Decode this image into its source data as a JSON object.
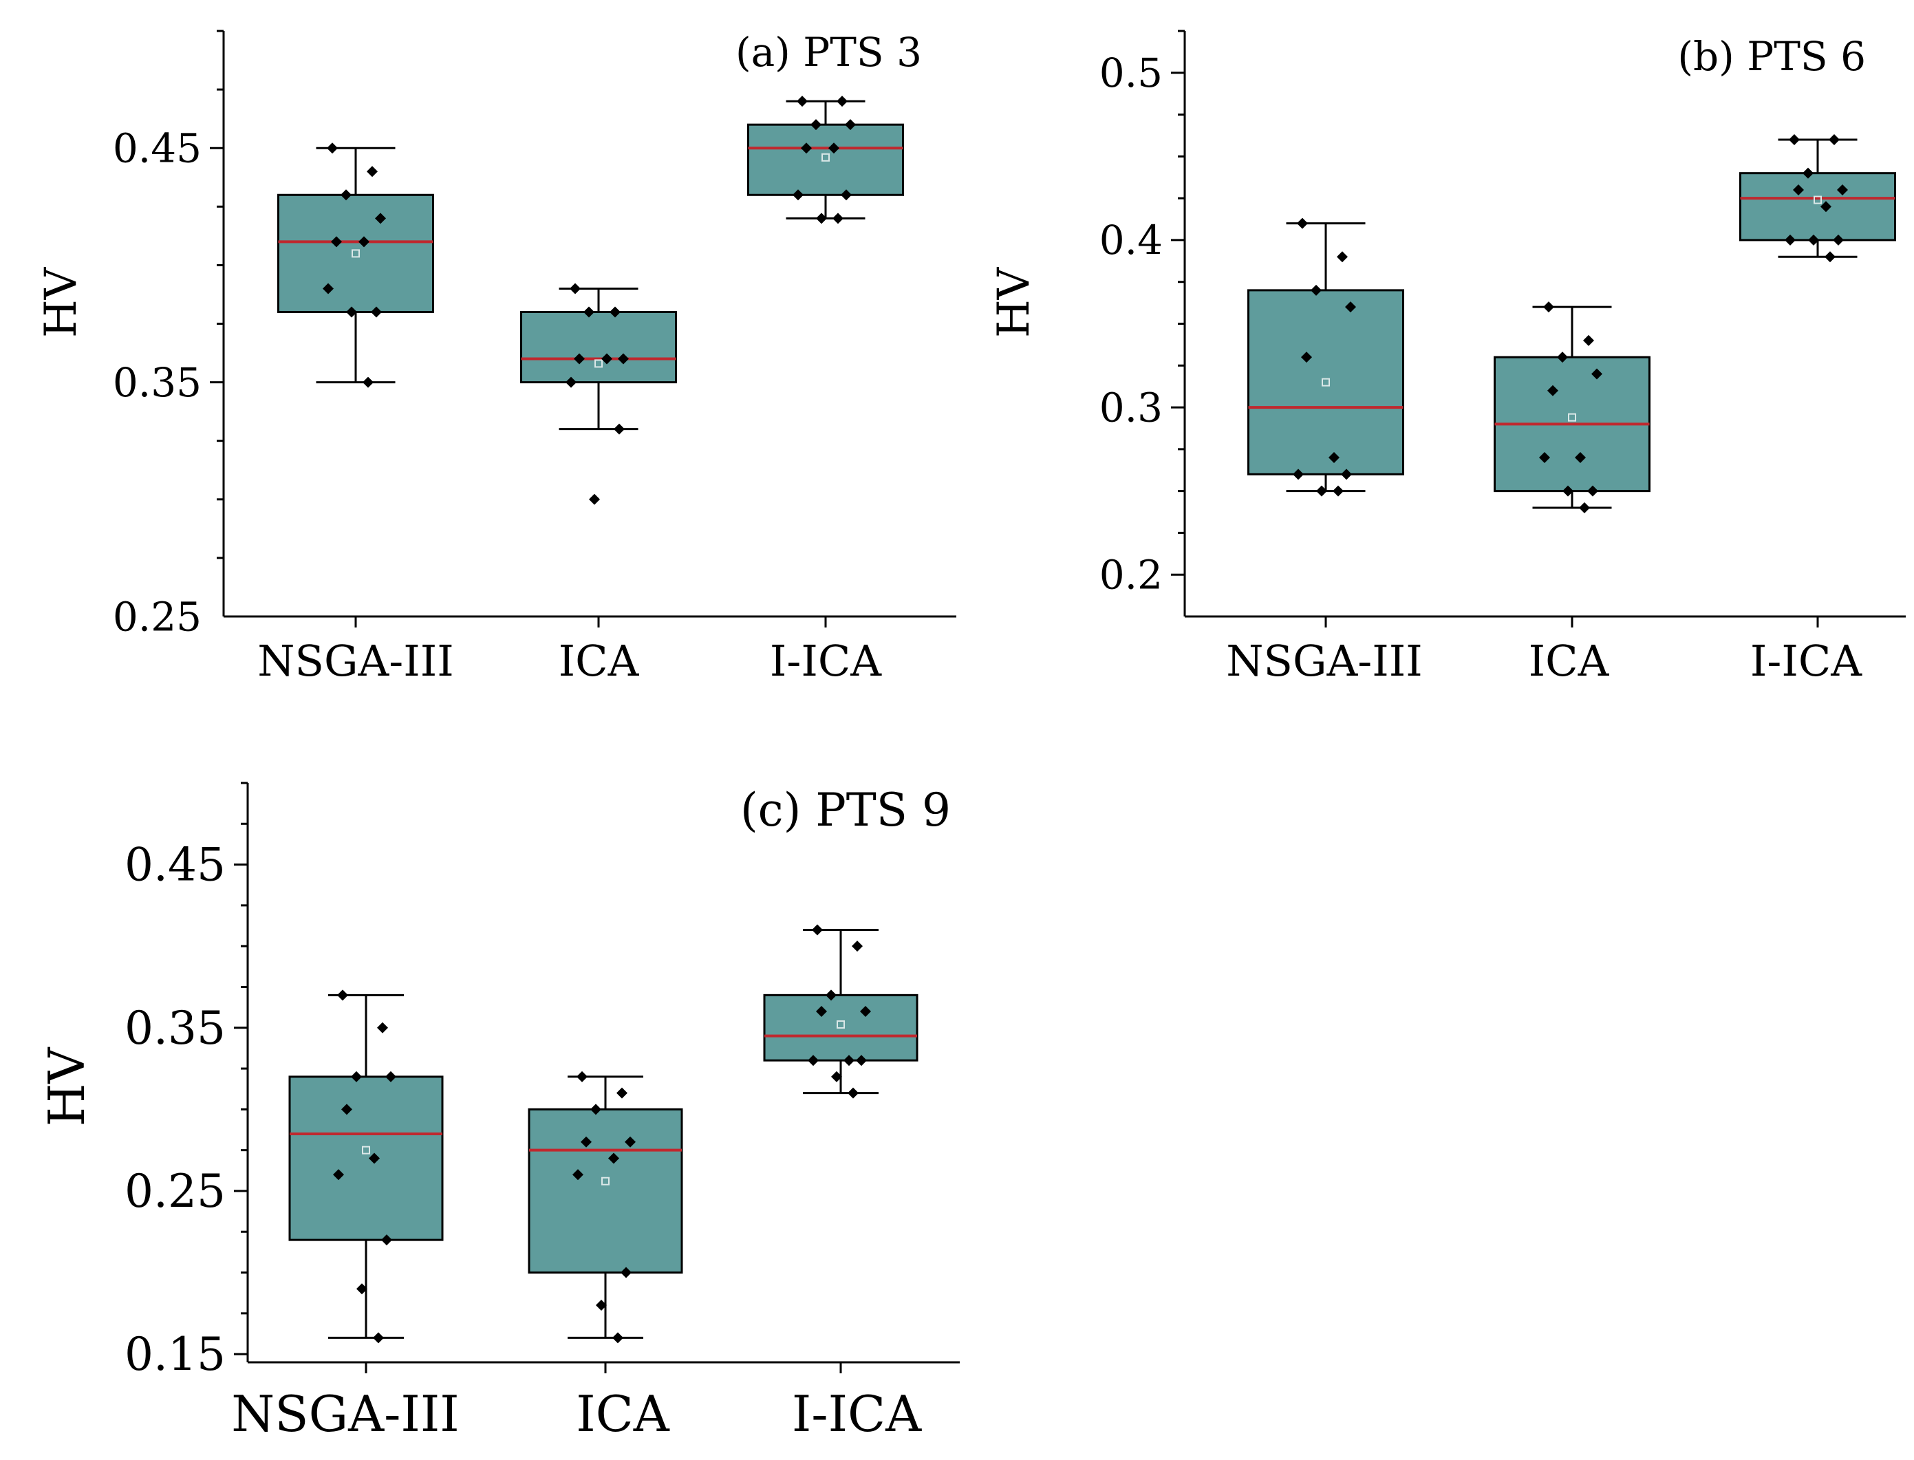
{
  "colors": {
    "box_fill": "#5f9c9c",
    "median": "#c0282e",
    "point": "#000000",
    "mean_marker": "#dbe8e8"
  },
  "chart_data": [
    {
      "type": "box",
      "title": "(a) PTS 3",
      "xlabel": "",
      "ylabel": "HV",
      "ylim": [
        0.25,
        0.5
      ],
      "yticks": [
        0.25,
        0.35,
        0.45
      ],
      "ytick_labels": [
        "0.25",
        "0.35",
        "0.45"
      ],
      "categories": [
        "NSGA-III",
        "ICA",
        "I-ICA"
      ],
      "series": [
        {
          "name": "NSGA-III",
          "q1": 0.38,
          "median": 0.41,
          "q3": 0.43,
          "whisker_low": 0.35,
          "whisker_high": 0.45,
          "mean": 0.405,
          "points": [
            0.45,
            0.44,
            0.43,
            0.42,
            0.41,
            0.41,
            0.39,
            0.38,
            0.38,
            0.35
          ]
        },
        {
          "name": "ICA",
          "q1": 0.35,
          "median": 0.36,
          "q3": 0.38,
          "whisker_low": 0.33,
          "whisker_high": 0.39,
          "mean": 0.358,
          "points": [
            0.39,
            0.38,
            0.38,
            0.36,
            0.36,
            0.36,
            0.35,
            0.33,
            0.3
          ]
        },
        {
          "name": "I-ICA",
          "q1": 0.43,
          "median": 0.45,
          "q3": 0.46,
          "whisker_low": 0.42,
          "whisker_high": 0.47,
          "mean": 0.446,
          "points": [
            0.47,
            0.47,
            0.46,
            0.46,
            0.45,
            0.45,
            0.43,
            0.43,
            0.42,
            0.42
          ]
        }
      ]
    },
    {
      "type": "box",
      "title": "(b) PTS 6",
      "xlabel": "",
      "ylabel": "HV",
      "ylim": [
        0.175,
        0.525
      ],
      "yticks": [
        0.2,
        0.3,
        0.4,
        0.5
      ],
      "ytick_labels": [
        "0.2",
        "0.3",
        "0.4",
        "0.5"
      ],
      "categories": [
        "NSGA-III",
        "ICA",
        "I-ICA"
      ],
      "series": [
        {
          "name": "NSGA-III",
          "q1": 0.26,
          "median": 0.3,
          "q3": 0.37,
          "whisker_low": 0.25,
          "whisker_high": 0.41,
          "mean": 0.315,
          "points": [
            0.41,
            0.39,
            0.37,
            0.36,
            0.33,
            0.27,
            0.26,
            0.26,
            0.25,
            0.25
          ]
        },
        {
          "name": "ICA",
          "q1": 0.25,
          "median": 0.29,
          "q3": 0.33,
          "whisker_low": 0.24,
          "whisker_high": 0.36,
          "mean": 0.294,
          "points": [
            0.36,
            0.34,
            0.33,
            0.32,
            0.31,
            0.27,
            0.27,
            0.25,
            0.25,
            0.24
          ]
        },
        {
          "name": "I-ICA",
          "q1": 0.4,
          "median": 0.425,
          "q3": 0.44,
          "whisker_low": 0.39,
          "whisker_high": 0.46,
          "mean": 0.424,
          "points": [
            0.46,
            0.46,
            0.44,
            0.43,
            0.43,
            0.42,
            0.4,
            0.4,
            0.4,
            0.39
          ]
        }
      ]
    },
    {
      "type": "box",
      "title": "(c) PTS 9",
      "xlabel": "",
      "ylabel": "HV",
      "ylim": [
        0.145,
        0.5
      ],
      "yticks": [
        0.15,
        0.25,
        0.35,
        0.45
      ],
      "ytick_labels": [
        "0.15",
        "0.25",
        "0.35",
        "0.45"
      ],
      "categories": [
        "NSGA-III",
        "ICA",
        "I-ICA"
      ],
      "series": [
        {
          "name": "NSGA-III",
          "q1": 0.22,
          "median": 0.285,
          "q3": 0.32,
          "whisker_low": 0.16,
          "whisker_high": 0.37,
          "mean": 0.275,
          "points": [
            0.37,
            0.35,
            0.32,
            0.32,
            0.3,
            0.27,
            0.26,
            0.22,
            0.19,
            0.16
          ]
        },
        {
          "name": "ICA",
          "q1": 0.2,
          "median": 0.275,
          "q3": 0.3,
          "whisker_low": 0.16,
          "whisker_high": 0.32,
          "mean": 0.256,
          "points": [
            0.32,
            0.31,
            0.3,
            0.28,
            0.28,
            0.27,
            0.26,
            0.2,
            0.18,
            0.16
          ]
        },
        {
          "name": "I-ICA",
          "q1": 0.33,
          "median": 0.345,
          "q3": 0.37,
          "whisker_low": 0.31,
          "whisker_high": 0.41,
          "mean": 0.352,
          "points": [
            0.41,
            0.4,
            0.37,
            0.36,
            0.36,
            0.33,
            0.33,
            0.33,
            0.32,
            0.31
          ]
        }
      ]
    }
  ]
}
